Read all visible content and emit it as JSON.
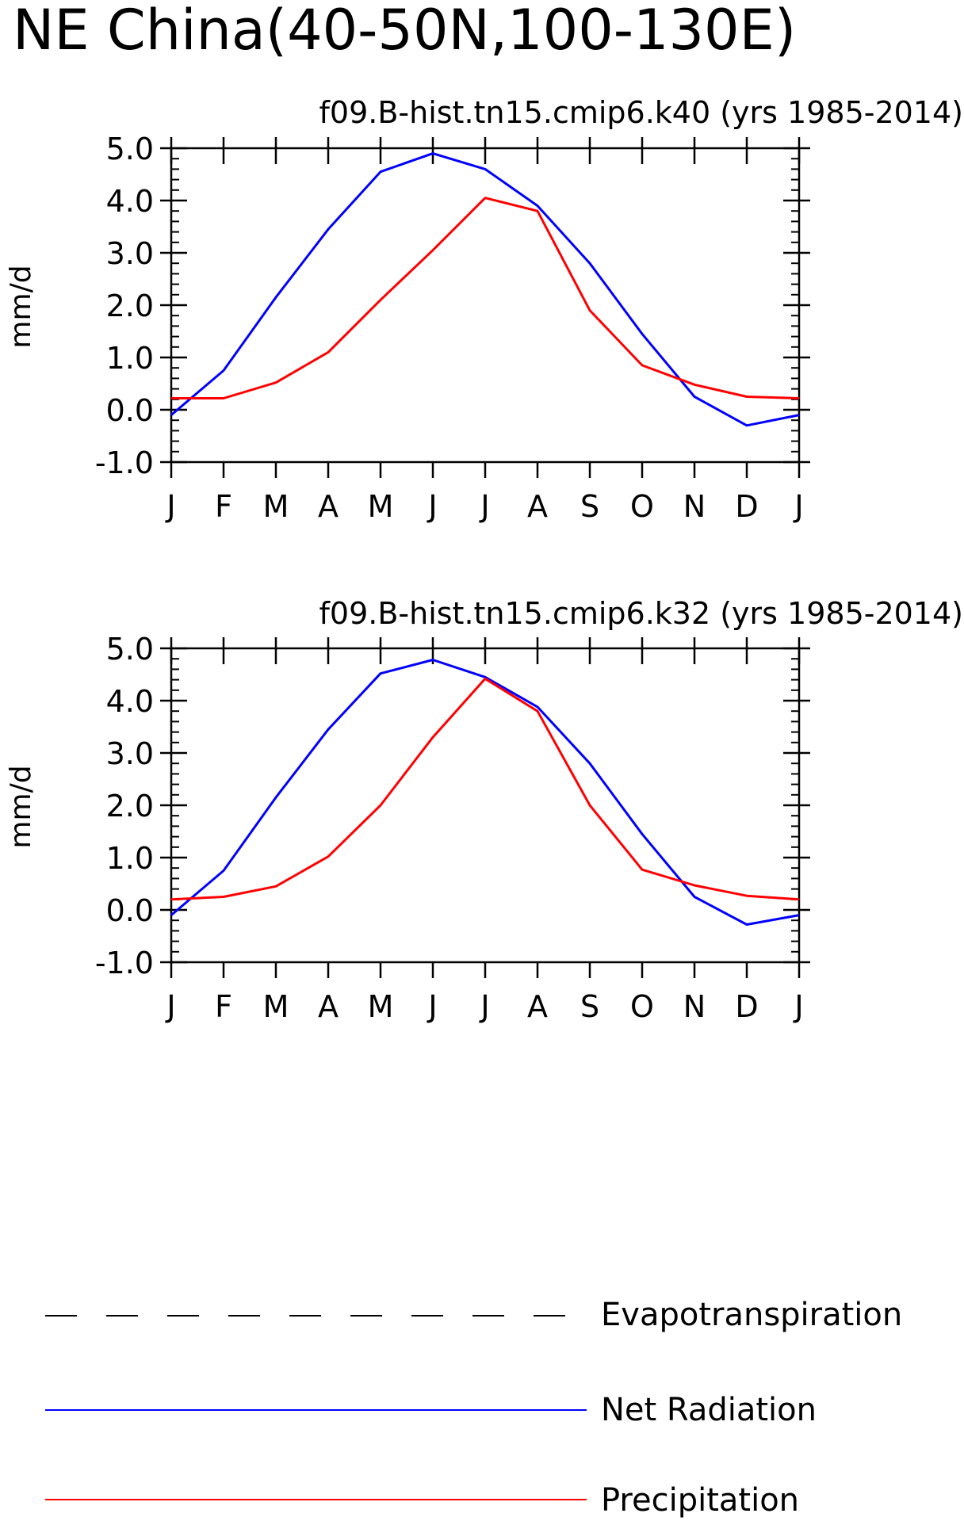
{
  "page": {
    "title": "NE China(40-50N,100-130E)"
  },
  "colors": {
    "net_radiation": "#0000ff",
    "precipitation": "#ff0000",
    "evapotranspiration": "#000000",
    "axis": "#000000"
  },
  "legend": {
    "placement": "bottom",
    "items": [
      {
        "label": "Evapotranspiration",
        "style": "dashed",
        "color": "#000000"
      },
      {
        "label": "Net Radiation",
        "style": "solid",
        "color": "#0000ff"
      },
      {
        "label": "Precipitation",
        "style": "solid",
        "color": "#ff0000"
      }
    ]
  },
  "chart_data": [
    {
      "type": "line",
      "title": "f09.B-hist.tn15.cmip6.k40 (yrs 1985-2014)",
      "ylabel": "mm/d",
      "xlabel": "",
      "ylim": [
        -1.0,
        5.0
      ],
      "yticks": [
        "-1.0",
        "0.0",
        "1.0",
        "2.0",
        "3.0",
        "4.0",
        "5.0"
      ],
      "categories": [
        "J",
        "F",
        "M",
        "A",
        "M",
        "J",
        "J",
        "A",
        "S",
        "O",
        "N",
        "D",
        "J"
      ],
      "series": [
        {
          "name": "Net Radiation",
          "color": "#0000ff",
          "values": [
            -0.1,
            0.75,
            2.15,
            3.45,
            4.55,
            4.9,
            4.6,
            3.9,
            2.8,
            1.45,
            0.25,
            -0.3,
            -0.1
          ]
        },
        {
          "name": "Precipitation",
          "color": "#ff0000",
          "values": [
            0.22,
            0.22,
            0.52,
            1.1,
            2.1,
            3.05,
            4.05,
            3.8,
            1.9,
            0.85,
            0.48,
            0.25,
            0.22
          ]
        }
      ]
    },
    {
      "type": "line",
      "title": "f09.B-hist.tn15.cmip6.k32 (yrs 1985-2014)",
      "ylabel": "mm/d",
      "xlabel": "",
      "ylim": [
        -1.0,
        5.0
      ],
      "yticks": [
        "-1.0",
        "0.0",
        "1.0",
        "2.0",
        "3.0",
        "4.0",
        "5.0"
      ],
      "categories": [
        "J",
        "F",
        "M",
        "A",
        "M",
        "J",
        "J",
        "A",
        "S",
        "O",
        "N",
        "D",
        "J"
      ],
      "series": [
        {
          "name": "Net Radiation",
          "color": "#0000ff",
          "values": [
            -0.1,
            0.75,
            2.15,
            3.45,
            4.52,
            4.78,
            4.45,
            3.88,
            2.8,
            1.45,
            0.25,
            -0.28,
            -0.1
          ]
        },
        {
          "name": "Precipitation",
          "color": "#ff0000",
          "values": [
            0.2,
            0.25,
            0.45,
            1.02,
            2.0,
            3.3,
            4.42,
            3.8,
            2.0,
            0.77,
            0.47,
            0.27,
            0.2
          ]
        }
      ]
    }
  ]
}
